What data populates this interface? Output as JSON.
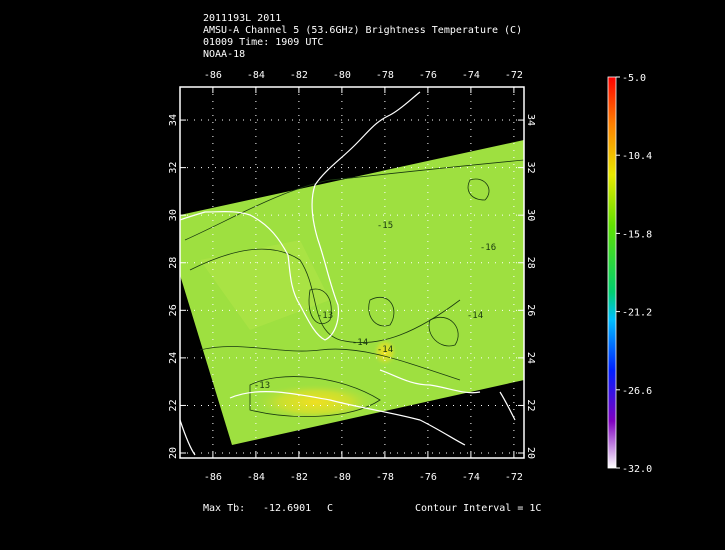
{
  "header": {
    "lines": [
      "2011193L 2011",
      "AMSU-A Channel 5 (53.6GHz) Brightness Temperature (C)",
      "01009 Time: 1909 UTC",
      "NOAA-18"
    ]
  },
  "map": {
    "xlim": [
      -87.53,
      -71.53
    ],
    "xticks": [
      -86,
      -84,
      -82,
      -80,
      -78,
      -76,
      -74,
      -72
    ],
    "ylim": [
      19.79,
      35.39
    ],
    "yticks": [
      20,
      22,
      24,
      26,
      28,
      30,
      32,
      34
    ],
    "grid": true,
    "contour_labels": [
      -15,
      -16,
      -14,
      -13,
      -14,
      -14,
      -13
    ]
  },
  "colorbar": {
    "lim": [
      -32,
      -5
    ],
    "ticks": [
      {
        "value": -5,
        "label": "-5.0"
      },
      {
        "value": -10.4,
        "label": "-10.4"
      },
      {
        "value": -15.8,
        "label": "-15.8"
      },
      {
        "value": -21.2,
        "label": "-21.2"
      },
      {
        "value": -26.6,
        "label": "-26.6"
      },
      {
        "value": -32,
        "label": "-32.0"
      }
    ]
  },
  "footer": {
    "max_tb_label": "Max Tb:",
    "max_tb": "-12.6901",
    "max_tb_unit": "C",
    "contour_interval": "Contour Interval = 1C"
  }
}
